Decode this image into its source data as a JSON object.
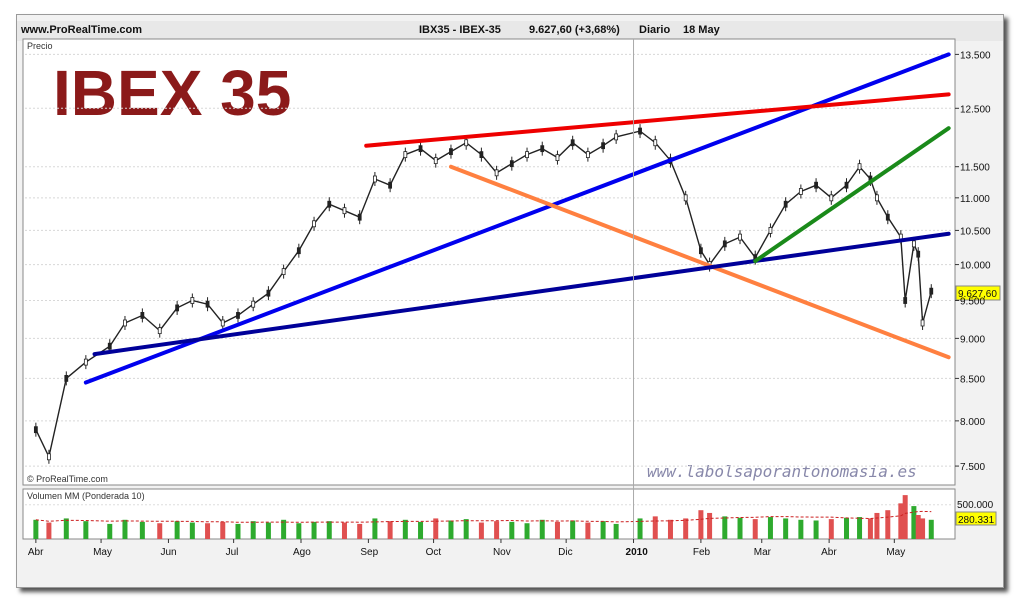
{
  "header": {
    "site": "www.ProRealTime.com",
    "instrument": "IBX35 - IBEX-35",
    "quote": "9.627,60 (+3,68%)",
    "period": "Diario",
    "date": "18 May"
  },
  "panel_label": "Precio",
  "big_title": "IBEX 35",
  "copyright": "© ProRealTime.com",
  "watermark": "www.labolsaporantonomasia.es",
  "price_axis": {
    "ticks": [
      7500,
      8000,
      8500,
      9000,
      9500,
      10000,
      10500,
      11000,
      11500,
      12500,
      13500
    ],
    "tick_labels": [
      "7.500",
      "8.000",
      "8.500",
      "9.000",
      "9.500",
      "10.000",
      "10.500",
      "11.000",
      "11.500",
      "12.500",
      "13.500"
    ],
    "scale": "log",
    "range": [
      7300,
      13800
    ],
    "last_label": "9.627,60",
    "last_value": 9627.6
  },
  "volume": {
    "label": "Volumen MM (Ponderada 10)",
    "tick_label": "500.000",
    "tick_value": 500000,
    "last_label": "280.331",
    "last_value": 280331,
    "up_color": "#2eaa2e",
    "down_color": "#e05050",
    "ma_color": "#cc2020"
  },
  "x_axis": {
    "months": [
      "Abr",
      "May",
      "Jun",
      "Jul",
      "Ago",
      "Sep",
      "Oct",
      "Nov",
      "Dic",
      "2010",
      "Feb",
      "Mar",
      "Abr",
      "May"
    ]
  },
  "chart_data": {
    "type": "line",
    "title": "IBEX 35",
    "ylabel": "Precio",
    "scale": "log",
    "ylim": [
      7300,
      13800
    ],
    "x": [
      "2009-04-01",
      "2009-04-07",
      "2009-04-15",
      "2009-04-24",
      "2009-05-05",
      "2009-05-12",
      "2009-05-20",
      "2009-05-28",
      "2009-06-05",
      "2009-06-12",
      "2009-06-19",
      "2009-06-26",
      "2009-07-03",
      "2009-07-10",
      "2009-07-17",
      "2009-07-24",
      "2009-07-31",
      "2009-08-07",
      "2009-08-14",
      "2009-08-21",
      "2009-08-28",
      "2009-09-04",
      "2009-09-11",
      "2009-09-18",
      "2009-09-25",
      "2009-10-02",
      "2009-10-09",
      "2009-10-16",
      "2009-10-23",
      "2009-10-30",
      "2009-11-06",
      "2009-11-13",
      "2009-11-20",
      "2009-11-27",
      "2009-12-04",
      "2009-12-11",
      "2009-12-18",
      "2009-12-24",
      "2010-01-04",
      "2010-01-11",
      "2010-01-18",
      "2010-01-25",
      "2010-02-01",
      "2010-02-05",
      "2010-02-12",
      "2010-02-19",
      "2010-02-26",
      "2010-03-05",
      "2010-03-12",
      "2010-03-19",
      "2010-03-26",
      "2010-04-02",
      "2010-04-09",
      "2010-04-15",
      "2010-04-20",
      "2010-04-23",
      "2010-04-28",
      "2010-05-04",
      "2010-05-06",
      "2010-05-10",
      "2010-05-12",
      "2010-05-14",
      "2010-05-18"
    ],
    "series": [
      {
        "values": [
          7900,
          7600,
          8500,
          8700,
          8900,
          9200,
          9300,
          9100,
          9400,
          9500,
          9450,
          9200,
          9300,
          9450,
          9600,
          9900,
          10200,
          10600,
          10900,
          10800,
          10700,
          11300,
          11200,
          11700,
          11800,
          11600,
          11750,
          11900,
          11700,
          11400,
          11550,
          11700,
          11800,
          11650,
          11900,
          11700,
          11850,
          12000,
          12100,
          11900,
          11600,
          11000,
          10200,
          10000,
          10300,
          10400,
          10100,
          10500,
          10900,
          11100,
          11200,
          11000,
          11200,
          11500,
          11300,
          11000,
          10700,
          10400,
          9500,
          10300,
          10150,
          9200,
          9627.6
        ]
      }
    ],
    "trendlines": [
      {
        "color": "#0000ee",
        "from": [
          "2009-04-24",
          8450
        ],
        "to": [
          "2010-05-26",
          13500
        ]
      },
      {
        "color": "#ee0000",
        "from": [
          "2009-08-31",
          11850
        ],
        "to": [
          "2010-05-26",
          12750
        ]
      },
      {
        "color": "#ff8040",
        "from": [
          "2009-10-09",
          11500
        ],
        "to": [
          "2010-05-26",
          8760
        ]
      },
      {
        "color": "#000099",
        "from": [
          "2009-04-28",
          8800
        ],
        "to": [
          "2010-05-26",
          10450
        ]
      },
      {
        "color": "#1a8a1a",
        "from": [
          "2010-02-26",
          10050
        ],
        "to": [
          "2010-05-26",
          12150
        ]
      }
    ],
    "volume_values": [
      280,
      240,
      300,
      260,
      220,
      280,
      250,
      230,
      260,
      240,
      230,
      250,
      220,
      260,
      240,
      280,
      230,
      250,
      260,
      240,
      220,
      300,
      260,
      280,
      250,
      300,
      270,
      290,
      240,
      260,
      250,
      230,
      280,
      250,
      270,
      240,
      260,
      220,
      300,
      330,
      280,
      300,
      420,
      380,
      330,
      310,
      290,
      320,
      300,
      280,
      270,
      290,
      310,
      320,
      300,
      380,
      420,
      520,
      640,
      480,
      350,
      300,
      280
    ],
    "grid": true,
    "legend": "none"
  }
}
